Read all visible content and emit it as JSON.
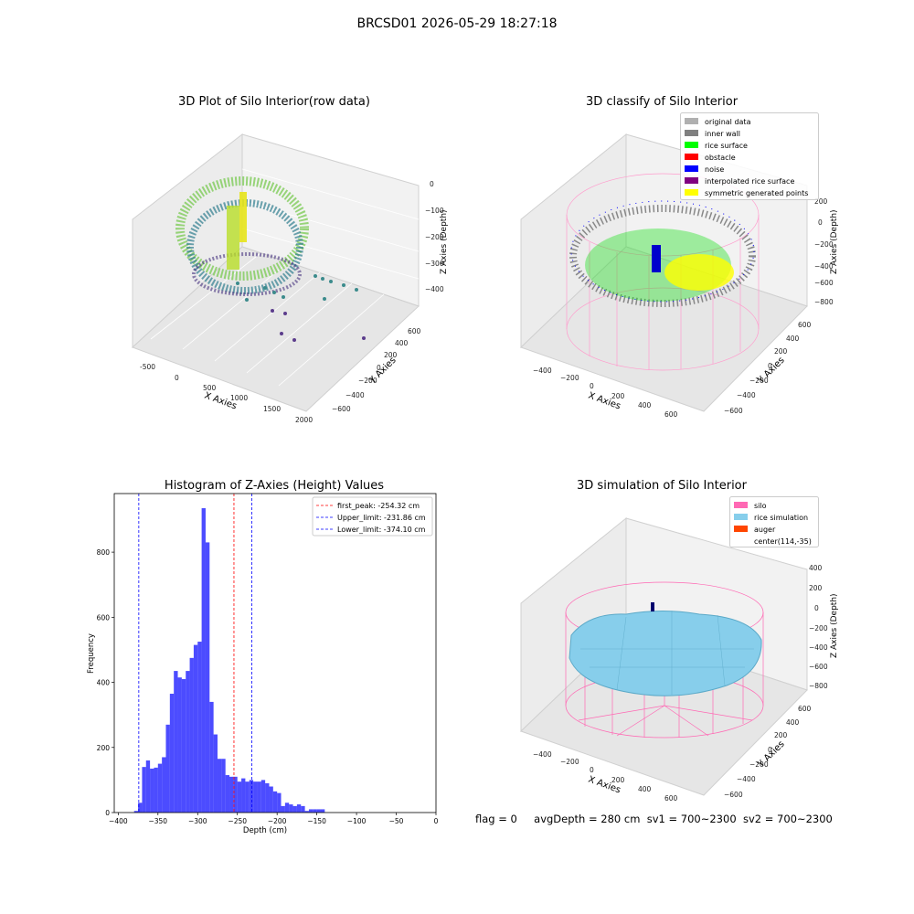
{
  "figure": {
    "title": "BRCSD01 2026-05-29 18:27:18",
    "footer": {
      "flag": "flag = 0",
      "avg_depth": "avgDepth = 280 cm",
      "sv1": "sv1 = 700~2300",
      "sv2": "sv2 = 700~2300"
    }
  },
  "panels": {
    "raw": {
      "title": "3D Plot of Silo Interior(row data)",
      "xlabel": "X Axies",
      "ylabel": "Y Axies",
      "zlabel": "Z Axies (Depth)",
      "xticks": [
        "-500",
        "0",
        "500",
        "1000",
        "1500",
        "2000"
      ],
      "yticks": [
        "600",
        "400",
        "200",
        "0",
        "−200",
        "−400",
        "−600"
      ],
      "zticks": [
        "0",
        "−100",
        "−200",
        "−300",
        "−400"
      ]
    },
    "classify": {
      "title": "3D classify of Silo Interior",
      "xlabel": "X Axies",
      "ylabel": "Y Axies",
      "zlabel": "Z Axies (Depth)",
      "xticks": [
        "−400",
        "−200",
        "0",
        "200",
        "400",
        "600"
      ],
      "yticks": [
        "600",
        "400",
        "200",
        "0",
        "−200",
        "−400",
        "−600"
      ],
      "zticks": [
        "200",
        "0",
        "−200",
        "−400",
        "−600",
        "−800"
      ],
      "legend": [
        {
          "label": "original data",
          "color": "#b0b0b0"
        },
        {
          "label": "inner wall",
          "color": "#808080"
        },
        {
          "label": "rice surface",
          "color": "#00ff00"
        },
        {
          "label": "obstacle",
          "color": "#ff0000"
        },
        {
          "label": "noise",
          "color": "#0000ff"
        },
        {
          "label": "interpolated rice surface",
          "color": "#800080"
        },
        {
          "label": "symmetric generated points",
          "color": "#ffff00"
        }
      ]
    },
    "simulation": {
      "title": "3D simulation of Silo Interior",
      "xlabel": "X Axies",
      "ylabel": "Y Axies",
      "zlabel": "Z Axies (Depth)",
      "xticks": [
        "−400",
        "−200",
        "0",
        "200",
        "400",
        "600"
      ],
      "yticks": [
        "600",
        "400",
        "200",
        "0",
        "−200",
        "−400",
        "−600"
      ],
      "zticks": [
        "400",
        "200",
        "0",
        "−200",
        "−400",
        "−600",
        "−800"
      ],
      "legend": [
        {
          "label": "silo",
          "color": "#ff69b4"
        },
        {
          "label": "rice simulation",
          "color": "#87ceeb"
        },
        {
          "label": "auger",
          "color": "#ff4500"
        },
        {
          "label": "center(114,-35)",
          "color": ""
        }
      ]
    }
  },
  "chart_data": {
    "type": "bar",
    "title": "Histogram of Z-Axies (Height) Values",
    "xlabel": "Depth (cm)",
    "ylabel": "Frequency",
    "xlim": [
      -405,
      0
    ],
    "ylim": [
      0,
      980
    ],
    "xticks": [
      "−400",
      "−350",
      "−300",
      "−250",
      "−200",
      "−150",
      "−100",
      "−50",
      "0"
    ],
    "xtick_values": [
      -400,
      -350,
      -300,
      -250,
      -200,
      -150,
      -100,
      -50,
      0
    ],
    "yticks": [
      "0",
      "200",
      "400",
      "600",
      "800"
    ],
    "ytick_values": [
      0,
      200,
      400,
      600,
      800
    ],
    "bar_color": "#0000ff",
    "bin_start": -380,
    "bin_width": 5,
    "values": [
      5,
      30,
      140,
      160,
      135,
      138,
      150,
      170,
      270,
      365,
      435,
      415,
      410,
      435,
      475,
      515,
      525,
      935,
      830,
      340,
      240,
      165,
      165,
      115,
      110,
      110,
      95,
      105,
      95,
      100,
      95,
      95,
      100,
      90,
      80,
      65,
      60,
      20,
      30,
      25,
      20,
      25,
      20,
      5,
      10,
      10,
      10,
      10
    ],
    "vlines": [
      {
        "label": "first_peak: -254.32 cm",
        "x": -254.32,
        "color": "#ff0000"
      },
      {
        "label": "Upper_limit: -231.86 cm",
        "x": -231.86,
        "color": "#0000ff"
      },
      {
        "label": "Lower_limit: -374.10 cm",
        "x": -374.1,
        "color": "#0000ff"
      }
    ],
    "legend_position": "upper right"
  }
}
